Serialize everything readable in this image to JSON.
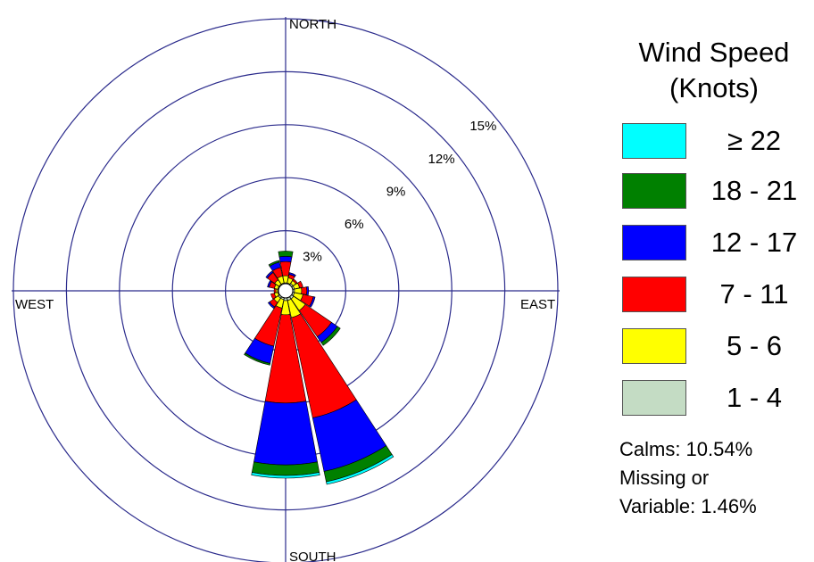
{
  "chart_data": {
    "type": "windrose",
    "title": "",
    "directions": [
      "N",
      "NNE",
      "NE",
      "ENE",
      "E",
      "ESE",
      "SE",
      "SSE",
      "S",
      "SSW",
      "SW",
      "WSW",
      "W",
      "WNW",
      "NW",
      "NNW"
    ],
    "bin_order": [
      "1 - 4",
      "5 - 6",
      "7 - 11",
      "12 - 17",
      "18 - 21",
      "≥ 22"
    ],
    "series": [
      {
        "name": "1 - 4",
        "color": "#c4dcc4",
        "values": [
          0.05,
          0.05,
          0.1,
          0.1,
          0.1,
          0.1,
          0.15,
          0.15,
          0.15,
          0.1,
          0.1,
          0.05,
          0.05,
          0.05,
          0.05,
          0.05
        ]
      },
      {
        "name": "5 - 6",
        "color": "#ffff00",
        "values": [
          0.4,
          0.3,
          0.2,
          0.3,
          0.4,
          0.5,
          0.8,
          1.0,
          0.8,
          0.5,
          0.3,
          0.2,
          0.1,
          0.2,
          0.3,
          0.4
        ]
      },
      {
        "name": "7 - 11",
        "color": "#ff0000",
        "values": [
          0.8,
          0.2,
          0.1,
          0.2,
          0.3,
          0.6,
          1.8,
          5.8,
          5.0,
          2.2,
          0.3,
          0.2,
          0.1,
          0.3,
          0.5,
          0.5
        ]
      },
      {
        "name": "12 - 17",
        "color": "#0000ff",
        "values": [
          0.3,
          0.1,
          0.0,
          0.0,
          0.1,
          0.1,
          0.4,
          3.1,
          3.5,
          1.0,
          0.1,
          0.0,
          0.0,
          0.1,
          0.1,
          0.3
        ]
      },
      {
        "name": "18 - 21",
        "color": "#008000",
        "values": [
          0.3,
          0.0,
          0.0,
          0.0,
          0.0,
          0.0,
          0.2,
          0.6,
          0.6,
          0.1,
          0.0,
          0.0,
          0.0,
          0.0,
          0.0,
          0.1
        ]
      },
      {
        "name": "≥ 22",
        "color": "#00ffff",
        "values": [
          0.0,
          0.0,
          0.0,
          0.0,
          0.0,
          0.0,
          0.0,
          0.15,
          0.15,
          0.0,
          0.0,
          0.0,
          0.0,
          0.0,
          0.0,
          0.0
        ]
      }
    ],
    "rings": [
      3,
      6,
      9,
      12,
      15
    ],
    "ring_labels": [
      "3%",
      "6%",
      "9%",
      "12%",
      "15%"
    ],
    "max_ring": 15,
    "axis_labels": {
      "north": "NORTH",
      "south": "SOUTH",
      "east": "EAST",
      "west": "WEST"
    }
  },
  "legend": {
    "title_line1": "Wind Speed",
    "title_line2": "(Knots)",
    "items": [
      {
        "label": "≥ 22",
        "color": "#00ffff"
      },
      {
        "label": "18 - 21",
        "color": "#008000"
      },
      {
        "label": "12 - 17",
        "color": "#0000ff"
      },
      {
        "label": "7 - 11",
        "color": "#ff0000"
      },
      {
        "label": "5 - 6",
        "color": "#ffff00"
      },
      {
        "label": "1 - 4",
        "color": "#c4dcc4"
      }
    ]
  },
  "notes": {
    "calms": "Calms: 10.54%",
    "missing_line1": "Missing or",
    "missing_line2": "Variable: 1.46%"
  },
  "colors": {
    "grid": "#2b2b8c"
  }
}
